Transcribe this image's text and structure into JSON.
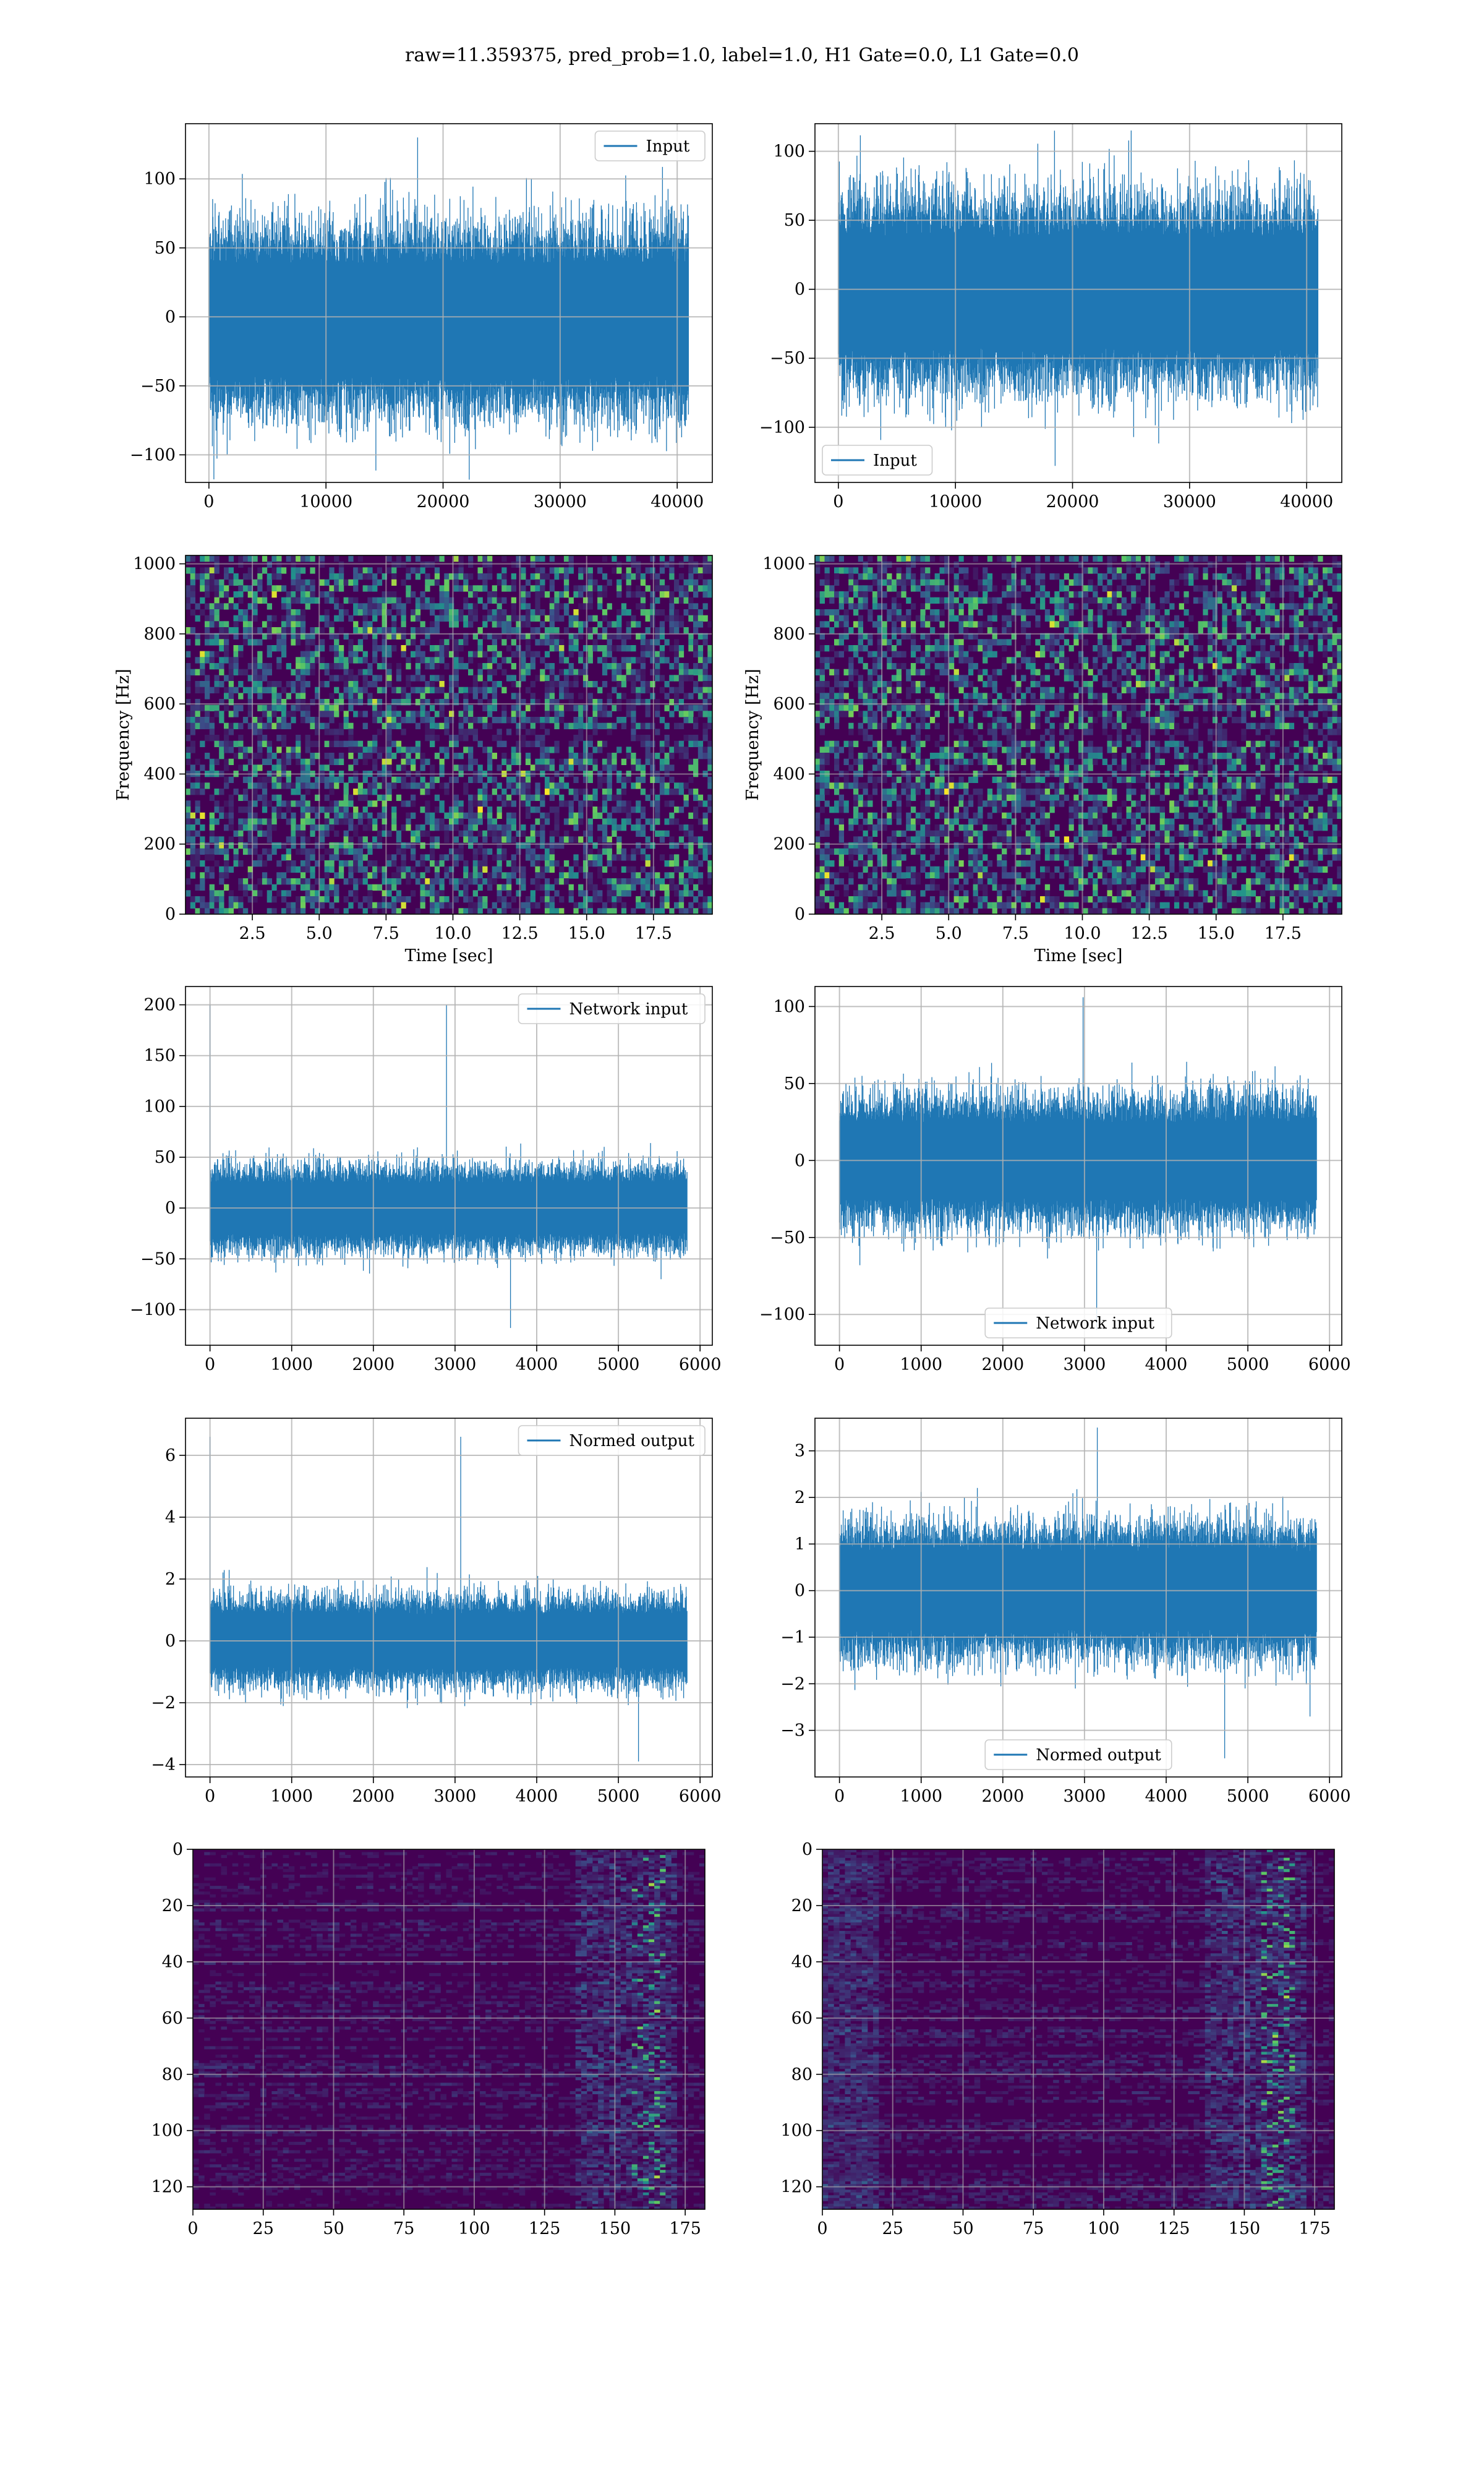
{
  "suptitle": "raw=11.359375, pred_prob=1.0, label=1.0, H1 Gate=0.0, L1 Gate=0.0",
  "colors": {
    "series": "#1f77b4",
    "grid": "#b0b0b0",
    "axes": "#000000",
    "viridis_low": "#440154",
    "viridis_mid": "#21918c",
    "viridis_high": "#fde725"
  },
  "chart_data": [
    {
      "id": "input-h1",
      "type": "line",
      "legend": "Input",
      "legend_loc": "upper right",
      "xlim": [
        -2000,
        43000
      ],
      "ylim": [
        -120,
        140
      ],
      "xticks": [
        0,
        10000,
        20000,
        30000,
        40000
      ],
      "yticks": [
        -100,
        -50,
        0,
        50,
        100
      ],
      "n": 40960,
      "envelope": [
        -60,
        55
      ],
      "max": 130,
      "min": -118,
      "grid": true
    },
    {
      "id": "input-l1",
      "type": "line",
      "legend": "Input",
      "legend_loc": "lower left",
      "xlim": [
        -2000,
        43000
      ],
      "ylim": [
        -140,
        120
      ],
      "xticks": [
        0,
        10000,
        20000,
        30000,
        40000
      ],
      "yticks": [
        -100,
        -50,
        0,
        50,
        100
      ],
      "n": 40960,
      "envelope": [
        -60,
        55
      ],
      "max": 115,
      "min": -128,
      "grid": true
    },
    {
      "id": "spectrogram-h1",
      "type": "heatmap",
      "xlabel": "Time [sec]",
      "ylabel": "Frequency [Hz]",
      "xlim": [
        0,
        19.7
      ],
      "ylim": [
        0,
        1024
      ],
      "xticks": [
        2.5,
        5.0,
        7.5,
        10.0,
        12.5,
        15.0,
        17.5
      ],
      "yticks": [
        0,
        200,
        400,
        600,
        800,
        1000
      ],
      "colormap": "viridis",
      "grid": true
    },
    {
      "id": "spectrogram-l1",
      "type": "heatmap",
      "xlabel": "Time [sec]",
      "ylabel": "Frequency [Hz]",
      "xlim": [
        0,
        19.7
      ],
      "ylim": [
        0,
        1024
      ],
      "xticks": [
        2.5,
        5.0,
        7.5,
        10.0,
        12.5,
        15.0,
        17.5
      ],
      "yticks": [
        0,
        200,
        400,
        600,
        800,
        1000
      ],
      "colormap": "viridis",
      "grid": true
    },
    {
      "id": "network-input-h1",
      "type": "line",
      "legend": "Network input",
      "legend_loc": "upper right",
      "xlim": [
        -300,
        6150
      ],
      "ylim": [
        -135,
        218
      ],
      "xticks": [
        0,
        1000,
        2000,
        3000,
        4000,
        5000,
        6000
      ],
      "yticks": [
        -100,
        -50,
        0,
        50,
        100,
        150,
        200
      ],
      "n": 5840,
      "envelope": [
        -35,
        35
      ],
      "max": 200,
      "min": -118,
      "grid": true
    },
    {
      "id": "network-input-l1",
      "type": "line",
      "legend": "Network input",
      "legend_loc": "lower center",
      "xlim": [
        -300,
        6150
      ],
      "ylim": [
        -120,
        113
      ],
      "xticks": [
        0,
        1000,
        2000,
        3000,
        4000,
        5000,
        6000
      ],
      "yticks": [
        -100,
        -50,
        0,
        50,
        100
      ],
      "n": 5840,
      "envelope": [
        -35,
        35
      ],
      "max": 106,
      "min": -110,
      "grid": true
    },
    {
      "id": "normed-output-h1",
      "type": "line",
      "legend": "Normed output",
      "legend_loc": "upper right",
      "xlim": [
        -300,
        6150
      ],
      "ylim": [
        -4.4,
        7.2
      ],
      "xticks": [
        0,
        1000,
        2000,
        3000,
        4000,
        5000,
        6000
      ],
      "yticks": [
        -4,
        -2,
        0,
        2,
        4,
        6
      ],
      "n": 5840,
      "envelope": [
        -1.2,
        1.2
      ],
      "max": 6.6,
      "min": -3.9,
      "grid": true
    },
    {
      "id": "normed-output-l1",
      "type": "line",
      "legend": "Normed output",
      "legend_loc": "lower center",
      "xlim": [
        -300,
        6150
      ],
      "ylim": [
        -4.0,
        3.7
      ],
      "xticks": [
        0,
        1000,
        2000,
        3000,
        4000,
        5000,
        6000
      ],
      "yticks": [
        -3,
        -2,
        -1,
        0,
        1,
        2,
        3
      ],
      "n": 5840,
      "envelope": [
        -1.2,
        1.2
      ],
      "max": 3.5,
      "min": -3.6,
      "grid": true
    },
    {
      "id": "feature-map-h1",
      "type": "heatmap",
      "xlim": [
        0,
        182
      ],
      "ylim": [
        128,
        0
      ],
      "xticks": [
        0,
        25,
        50,
        75,
        100,
        125,
        150,
        175
      ],
      "yticks": [
        0,
        20,
        40,
        60,
        80,
        100,
        120
      ],
      "colormap": "viridis",
      "grid": true
    },
    {
      "id": "feature-map-l1",
      "type": "heatmap",
      "xlim": [
        0,
        182
      ],
      "ylim": [
        128,
        0
      ],
      "xticks": [
        0,
        25,
        50,
        75,
        100,
        125,
        150,
        175
      ],
      "yticks": [
        0,
        20,
        40,
        60,
        80,
        100,
        120
      ],
      "colormap": "viridis",
      "grid": true
    }
  ]
}
